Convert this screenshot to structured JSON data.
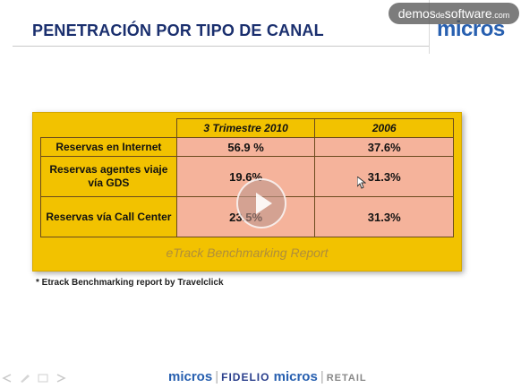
{
  "watermark": {
    "prefix": "demos",
    "middle": "de",
    "suffix": "software",
    "tld": ".com"
  },
  "slide": {
    "title": "PENETRACIÓN POR TIPO DE CANAL",
    "brand_logo": "micros",
    "table": {
      "columns": [
        "3 Trimestre 2010",
        "2006"
      ],
      "rows": [
        {
          "label": "Reservas en Internet",
          "values": [
            "56.9 %",
            "37.6%"
          ]
        },
        {
          "label": "Reservas agentes viaje vía GDS",
          "values": [
            "19.6%",
            "31.3%"
          ]
        },
        {
          "label": "Reservas vía Call Center",
          "values": [
            "23.5%",
            "31.3%"
          ]
        }
      ],
      "caption": "eTrack Benchmarking Report"
    },
    "footnote": "* Etrack Benchmarking report by Travelclick",
    "footer": {
      "logo1": "micros",
      "logo2": "FIDELIO",
      "logo3": "micros",
      "logo4": "RETAIL"
    }
  },
  "player": {
    "play_icon": "play-icon"
  },
  "colors": {
    "title": "#1a2f6e",
    "brand": "#2860b0",
    "table_header": "#f2c200",
    "table_cell": "#f5b39b"
  }
}
